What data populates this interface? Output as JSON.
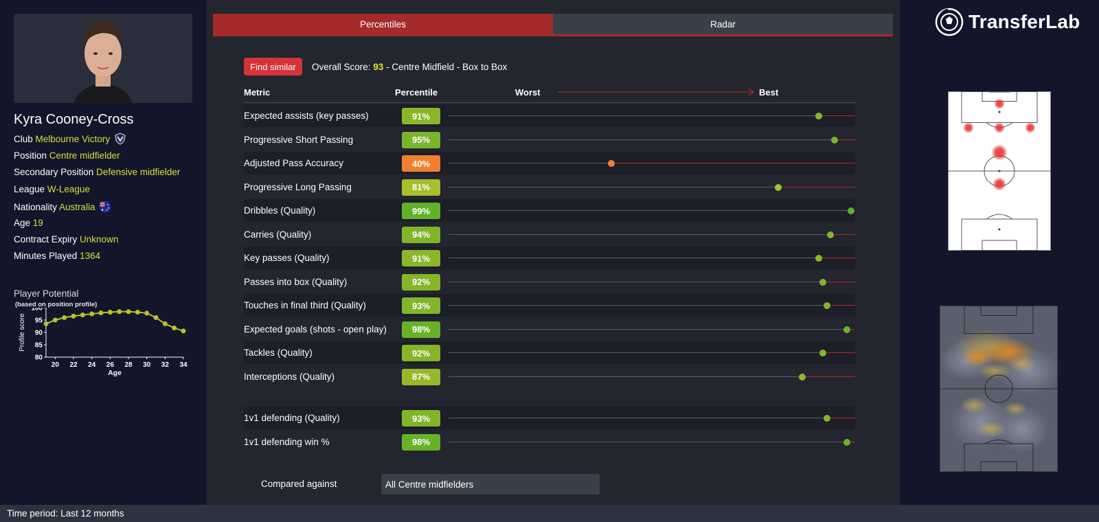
{
  "player": {
    "name": "Kyra Cooney-Cross",
    "photo_alt": "player-photo",
    "fields": [
      {
        "label": "Club",
        "value": "Melbourne Victory",
        "icon": "club-crest-icon"
      },
      {
        "label": "Position",
        "value": "Centre midfielder"
      },
      {
        "label": "Secondary Position",
        "value": "Defensive midfielder"
      },
      {
        "label": "League",
        "value": "W-League"
      },
      {
        "label": "Nationality",
        "value": "Australia",
        "icon": "australia-flag-icon"
      },
      {
        "label": "Age",
        "value": "19"
      },
      {
        "label": "Contract Expiry",
        "value": "Unknown"
      },
      {
        "label": "Minutes Played",
        "value": "1364"
      }
    ]
  },
  "potential": {
    "title": "Player Potential",
    "subtitle": "(based on position profile)",
    "chart_data": {
      "type": "line",
      "xlabel": "Age",
      "ylabel": "Profile score",
      "xlim": [
        19,
        34
      ],
      "ylim": [
        80,
        100
      ],
      "x_ticks": [
        20,
        22,
        24,
        26,
        28,
        30,
        32,
        34
      ],
      "y_ticks": [
        80,
        85,
        90,
        95,
        100
      ],
      "x": [
        19,
        20,
        21,
        22,
        23,
        24,
        25,
        26,
        27,
        28,
        29,
        30,
        31,
        32,
        33,
        34
      ],
      "values": [
        93.5,
        95,
        96,
        96.6,
        97.1,
        97.5,
        97.9,
        98.2,
        98.4,
        98.4,
        98.2,
        97.8,
        96,
        93.5,
        91.8,
        90.6
      ],
      "color": "#b8c22a"
    }
  },
  "tabs": [
    {
      "label": "Percentiles",
      "active": true
    },
    {
      "label": "Radar",
      "active": false
    }
  ],
  "summary": {
    "find_similar": "Find similar",
    "overall_label": "Overall Score:",
    "overall_score": "93",
    "profile": "- Centre Midfield - Box to Box"
  },
  "table": {
    "col_metric": "Metric",
    "col_percentile": "Percentile",
    "worst": "Worst",
    "best": "Best",
    "group1": [
      {
        "metric": "Expected assists (key passes)",
        "label": "91%",
        "value": 91,
        "color": "#8ab62a"
      },
      {
        "metric": "Progressive Short Passing",
        "label": "95%",
        "value": 95,
        "color": "#7ab42a"
      },
      {
        "metric": "Adjusted Pass Accuracy",
        "label": "40%",
        "value": 40,
        "color": "#f08030"
      },
      {
        "metric": "Progressive Long Passing",
        "label": "81%",
        "value": 81,
        "color": "#a8be2a"
      },
      {
        "metric": "Dribbles (Quality)",
        "label": "99%",
        "value": 99,
        "color": "#62b12a"
      },
      {
        "metric": "Carries (Quality)",
        "label": "94%",
        "value": 94,
        "color": "#80b52a"
      },
      {
        "metric": "Key passes (Quality)",
        "label": "91%",
        "value": 91,
        "color": "#8ab62a"
      },
      {
        "metric": "Passes into box (Quality)",
        "label": "92%",
        "value": 92,
        "color": "#86b52a"
      },
      {
        "metric": "Touches in final third (Quality)",
        "label": "93%",
        "value": 93,
        "color": "#82b52a"
      },
      {
        "metric": "Expected goals (shots - open play)",
        "label": "98%",
        "value": 98,
        "color": "#68b22a"
      },
      {
        "metric": "Tackles (Quality)",
        "label": "92%",
        "value": 92,
        "color": "#86b52a"
      },
      {
        "metric": "Interceptions (Quality)",
        "label": "87%",
        "value": 87,
        "color": "#96b82a"
      }
    ],
    "group2": [
      {
        "metric": "1v1 defending (Quality)",
        "label": "93%",
        "value": 93,
        "color": "#82b52a"
      },
      {
        "metric": "1v1 defending win %",
        "label": "98%",
        "value": 98,
        "color": "#68b22a"
      }
    ]
  },
  "compare": {
    "label": "Compared against",
    "value": "All Centre midfielders"
  },
  "brand": {
    "name": "TransferLab",
    "logo_icon": "football-logo-icon"
  },
  "footer": {
    "time_period": "Time period: Last 12 months"
  },
  "colors": {
    "accent": "#a52a2a",
    "highlight": "#d4e03a"
  }
}
